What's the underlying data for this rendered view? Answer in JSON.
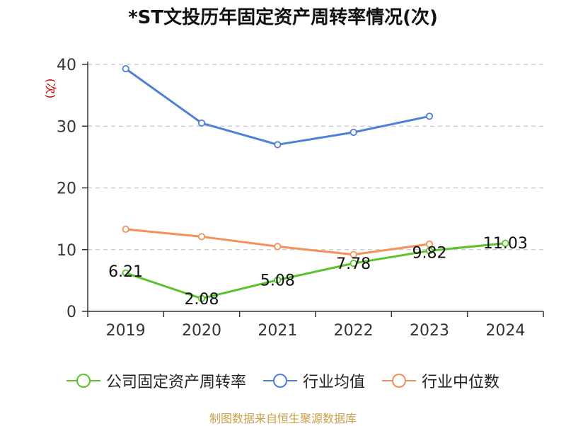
{
  "title": "*ST文投历年固定资产周转率情况(次)",
  "source": "制图数据来自恒生聚源数据库",
  "chart_data": {
    "type": "line",
    "title": "*ST文投历年固定资产周转率情况(次)",
    "ylabel": "(次)",
    "ylim": [
      0,
      40
    ],
    "yticks": [
      0,
      10,
      20,
      30,
      40
    ],
    "grid": true,
    "legend_position": "bottom",
    "categories": [
      "2019",
      "2020",
      "2021",
      "2022",
      "2023",
      "2024"
    ],
    "series": [
      {
        "name": "公司固定资产周转率",
        "color": "#5cc22b",
        "labels": true,
        "values": [
          6.21,
          2.08,
          5.08,
          7.78,
          9.82,
          11.03
        ]
      },
      {
        "name": "行业均值",
        "color": "#4f7fd9",
        "labels": false,
        "values": [
          39.3,
          30.5,
          27.0,
          29.0,
          31.6,
          null
        ]
      },
      {
        "name": "行业中位数",
        "color": "#f4905a",
        "labels": false,
        "values": [
          13.3,
          12.1,
          10.5,
          9.2,
          10.9,
          null
        ]
      }
    ]
  }
}
